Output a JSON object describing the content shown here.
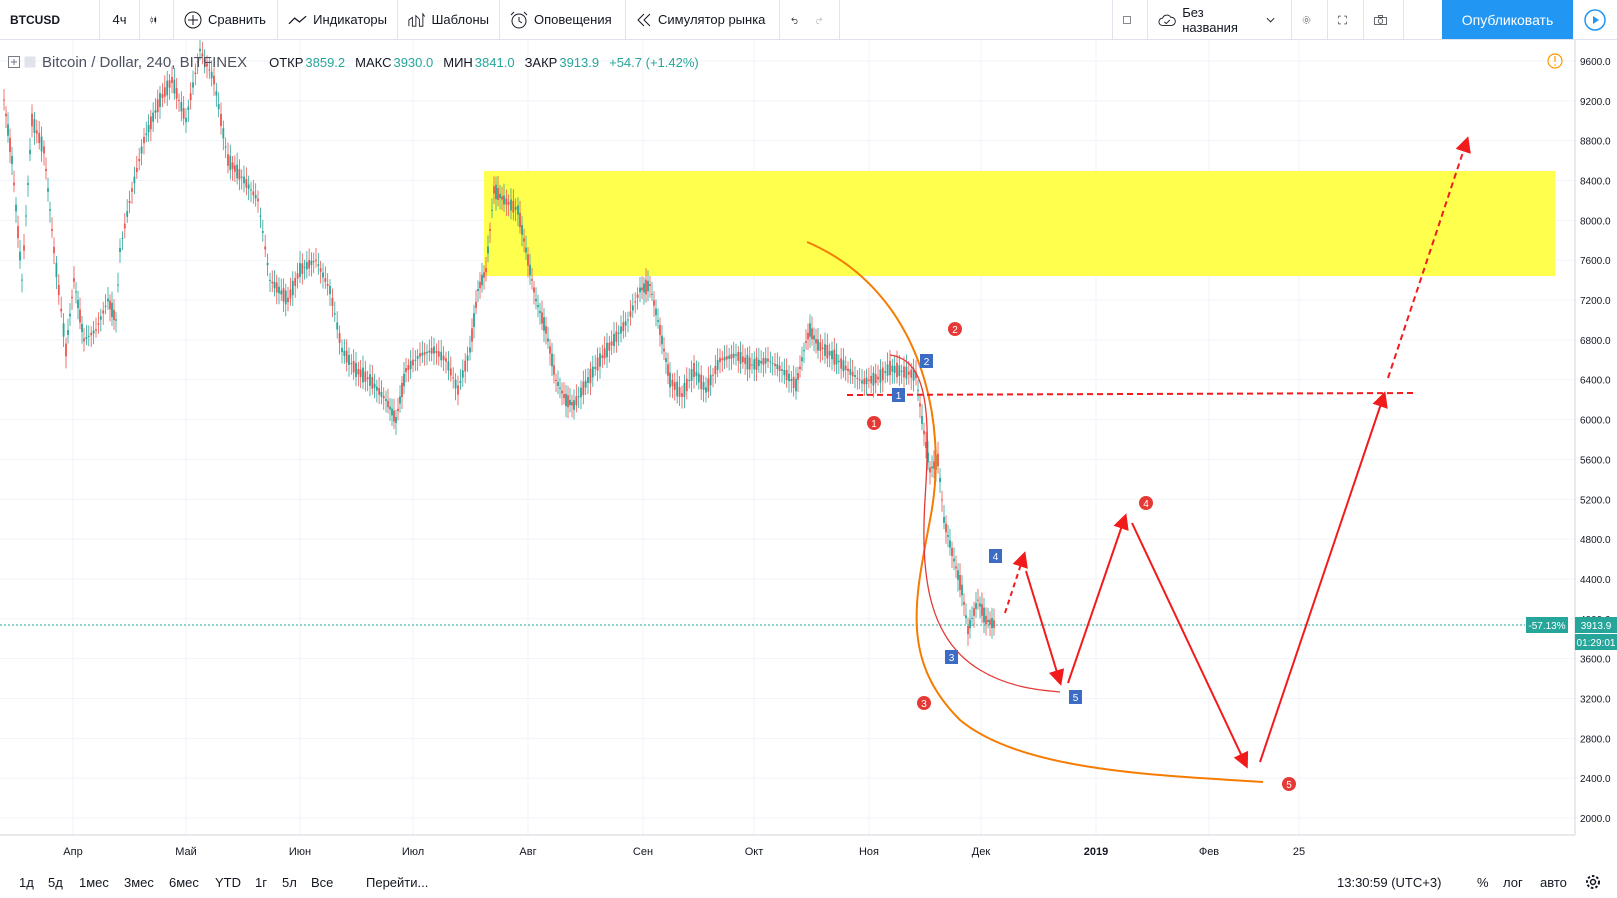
{
  "toolbar": {
    "symbol": "BTCUSD",
    "interval": "4ч",
    "compare": "Сравнить",
    "indicators": "Индикаторы",
    "templates": "Шаблоны",
    "alerts": "Оповещения",
    "replay": "Симулятор рынка",
    "layout_name": "Без названия",
    "publish": "Опубликовать"
  },
  "legend": {
    "symbol": "Bitcoin / Dollar, 240, BITFINEX",
    "open_label": "ОТКР",
    "open": "3859.2",
    "high_label": "МАКС",
    "high": "3930.0",
    "low_label": "МИН",
    "low": "3841.0",
    "close_label": "ЗАКР",
    "close": "3913.9",
    "change": "+54.7 (+1.42%)"
  },
  "price_axis": [
    "9600.0",
    "9200.0",
    "8800.0",
    "8400.0",
    "8000.0",
    "7600.0",
    "7200.0",
    "6800.0",
    "6400.0",
    "6000.0",
    "5600.0",
    "5200.0",
    "4800.0",
    "4400.0",
    "4000.0",
    "3600.0",
    "3200.0",
    "2800.0",
    "2400.0",
    "2000.0"
  ],
  "time_axis": [
    "Апр",
    "Май",
    "Июн",
    "Июл",
    "Авг",
    "Сен",
    "Окт",
    "Ноя",
    "Дек",
    "2019",
    "Фев",
    "25"
  ],
  "price_tag": {
    "pct": "-57.13%",
    "price": "3913.9",
    "countdown": "01:29:01"
  },
  "colors": {
    "up": "#26a69a",
    "down": "#ef5350",
    "zone": "#ffff44",
    "arrow": "#f21b1b",
    "orange": "#f57c00",
    "accent": "#2196f3"
  },
  "bottom": {
    "ranges": [
      "1д",
      "5д",
      "1мес",
      "3мес",
      "6мес",
      "YTD",
      "1г",
      "5л",
      "Все"
    ],
    "goto": "Перейти...",
    "clock": "13:30:59 (UTC+3)",
    "pct": "%",
    "log": "лог",
    "auto": "авто"
  },
  "annotations": {
    "red_labels": [
      "1",
      "2",
      "3",
      "4",
      "5"
    ],
    "blue_labels": [
      "1",
      "2",
      "3",
      "4",
      "5"
    ]
  }
}
